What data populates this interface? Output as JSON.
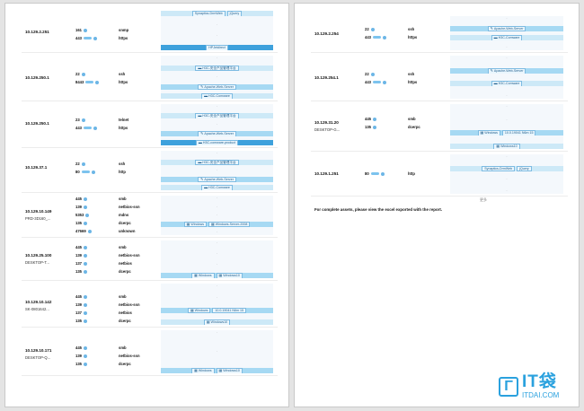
{
  "page1": {
    "rows": [
      {
        "ip": "10.129.2.251",
        "host": "",
        "ports": [
          {
            "p": "161",
            "svc": "snmp"
          },
          {
            "p": "443",
            "svc": "https"
          }
        ],
        "panel": [
          {
            "style": "lt",
            "tags": [
              {
                "icon": "",
                "text": "Synaptics-DrmWeb"
              },
              {
                "icon": "",
                "text": "jQuery"
              }
            ]
          },
          {
            "style": "ds",
            "text": "-"
          },
          {
            "style": "ds",
            "text": "-"
          },
          {
            "style": "dk",
            "tags": [
              {
                "icon": "",
                "text": "HPJetdirect"
              }
            ]
          }
        ]
      },
      {
        "ip": "10.129.250.1",
        "host": "",
        "ports": [
          {
            "p": "22",
            "svc": "ssh"
          },
          {
            "p": "8443",
            "svc": "https"
          }
        ],
        "panel": [
          {
            "style": "ds",
            "text": "-"
          },
          {
            "style": "lt",
            "tags": [
              {
                "icon": "▬",
                "text": "H3C-安全产品管理平台"
              }
            ]
          },
          {
            "style": "ds",
            "text": "-"
          },
          {
            "style": "md",
            "tags": [
              {
                "icon": "✎",
                "text": "Apache-Web-Server"
              }
            ]
          },
          {
            "style": "lt",
            "tags": [
              {
                "icon": "▬",
                "text": "H3C-Comware"
              }
            ]
          }
        ]
      },
      {
        "ip": "10.129.250.1",
        "host": "",
        "ports": [
          {
            "p": "23",
            "svc": "telnet"
          },
          {
            "p": "443",
            "svc": "https"
          }
        ],
        "panel": [
          {
            "style": "ds",
            "text": "-"
          },
          {
            "style": "lt",
            "tags": [
              {
                "icon": "▬",
                "text": "H3C-安全产品管理平台"
              }
            ]
          },
          {
            "style": "ds",
            "text": "-"
          },
          {
            "style": "md",
            "tags": [
              {
                "icon": "✎",
                "text": "Apache-Web-Server"
              }
            ]
          },
          {
            "style": "dk",
            "tags": [
              {
                "icon": "▬",
                "text": "H3C-comware-product"
              }
            ]
          }
        ]
      },
      {
        "ip": "10.129.37.1",
        "host": "",
        "ports": [
          {
            "p": "22",
            "svc": "ssh"
          },
          {
            "p": "80",
            "svc": "http"
          }
        ],
        "panel": [
          {
            "style": "ds",
            "text": "-"
          },
          {
            "style": "lt",
            "tags": [
              {
                "icon": "▬",
                "text": "H3C-安全产品管理平台"
              }
            ]
          },
          {
            "style": "ds",
            "text": "-"
          },
          {
            "style": "md",
            "tags": [
              {
                "icon": "✎",
                "text": "Apache-Web-Server"
              }
            ]
          },
          {
            "style": "lt",
            "tags": [
              {
                "icon": "▬",
                "text": "H3C-Comware"
              }
            ]
          }
        ]
      },
      {
        "ip": "10.129.10.149",
        "host": "PRD-3D160_...",
        "ports": [
          {
            "p": "445",
            "svc": "smb"
          },
          {
            "p": "139",
            "svc": "netbios-ssn"
          },
          {
            "p": "5353",
            "svc": "mdns"
          },
          {
            "p": "135",
            "svc": "dcerpc"
          },
          {
            "p": "47669",
            "svc": "unknown"
          }
        ],
        "panel": [
          {
            "style": "ds",
            "text": "-"
          },
          {
            "style": "ds",
            "text": "-"
          },
          {
            "style": "ds",
            "text": "-"
          },
          {
            "style": "md",
            "tags": [
              {
                "icon": "▦",
                "text": "Windows"
              },
              {
                "icon": "▦",
                "text": "Windows-Server-2008"
              }
            ]
          },
          {
            "style": "ds",
            "text": "-"
          }
        ]
      },
      {
        "ip": "10.129.25.100",
        "host": "DESKTOP-T...",
        "ports": [
          {
            "p": "445",
            "svc": "smb"
          },
          {
            "p": "139",
            "svc": "netbios-ssn"
          },
          {
            "p": "137",
            "svc": "netbios"
          },
          {
            "p": "135",
            "svc": "dcerpc"
          }
        ],
        "panel": [
          {
            "style": "ds",
            "text": "-"
          },
          {
            "style": "ds",
            "text": "-"
          },
          {
            "style": "ds",
            "text": "-"
          },
          {
            "style": "md",
            "tags": [
              {
                "icon": "▦",
                "text": "Windows"
              },
              {
                "icon": "▦",
                "text": "Windows10"
              }
            ]
          }
        ]
      },
      {
        "ip": "10.129.10.142",
        "host": "SK-0801642...",
        "ports": [
          {
            "p": "445",
            "svc": "smb"
          },
          {
            "p": "139",
            "svc": "netbios-ssn"
          },
          {
            "p": "137",
            "svc": "netbios"
          },
          {
            "p": "135",
            "svc": "dcerpc"
          }
        ],
        "panel": [
          {
            "style": "ds",
            "text": "-"
          },
          {
            "style": "ds",
            "text": "-"
          },
          {
            "style": "md",
            "tags": [
              {
                "icon": "▦",
                "text": "Windows"
              },
              {
                "icon": "",
                "text": "10.0.19041 N6m 15"
              }
            ]
          },
          {
            "style": "lt",
            "tags": [
              {
                "icon": "▦",
                "text": "Windows10"
              }
            ]
          }
        ]
      },
      {
        "ip": "10.129.10.171",
        "host": "DESKTOP-Q...",
        "ports": [
          {
            "p": "445",
            "svc": "smb"
          },
          {
            "p": "139",
            "svc": "netbios-ssn"
          },
          {
            "p": "135",
            "svc": "dcerpc"
          }
        ],
        "panel": [
          {
            "style": "ds",
            "text": "-"
          },
          {
            "style": "ds",
            "text": "-"
          },
          {
            "style": "md",
            "tags": [
              {
                "icon": "▦",
                "text": "Windows"
              },
              {
                "icon": "▦",
                "text": "Windows10"
              }
            ]
          }
        ]
      }
    ]
  },
  "page2": {
    "rows": [
      {
        "ip": "10.129.2.254",
        "host": "",
        "ports": [
          {
            "p": "22",
            "svc": "ssh"
          },
          {
            "p": "443",
            "svc": "https"
          }
        ],
        "panel": [
          {
            "style": "ds",
            "text": "-"
          },
          {
            "style": "md",
            "tags": [
              {
                "icon": "✎",
                "text": "Apache-Web-Server"
              }
            ]
          },
          {
            "style": "lt",
            "tags": [
              {
                "icon": "▬",
                "text": "H3C-Comware"
              }
            ]
          },
          {
            "style": "ds",
            "text": "-"
          }
        ]
      },
      {
        "ip": "10.129.254.1",
        "host": "",
        "ports": [
          {
            "p": "22",
            "svc": "ssh"
          },
          {
            "p": "443",
            "svc": "https"
          }
        ],
        "panel": [
          {
            "style": "ds",
            "text": "-"
          },
          {
            "style": "md",
            "tags": [
              {
                "icon": "✎",
                "text": "Apache-Web-Server"
              }
            ]
          },
          {
            "style": "lt",
            "tags": [
              {
                "icon": "▬",
                "text": "H3C-Comware"
              }
            ]
          },
          {
            "style": "ds",
            "text": "-"
          }
        ]
      },
      {
        "ip": "10.129.31.20",
        "host": "DESKTOP-G...",
        "ports": [
          {
            "p": "445",
            "svc": "smb"
          },
          {
            "p": "135",
            "svc": "dcerpc"
          }
        ],
        "panel": [
          {
            "style": "ds",
            "text": "-"
          },
          {
            "style": "ds",
            "text": "-"
          },
          {
            "style": "md",
            "tags": [
              {
                "icon": "▦",
                "text": "Windows"
              },
              {
                "icon": "",
                "text": "10.0.19041 N6m 15"
              }
            ]
          },
          {
            "style": "lt",
            "tags": [
              {
                "icon": "▦",
                "text": "Windows10"
              }
            ]
          }
        ]
      },
      {
        "ip": "10.129.1.251",
        "host": "",
        "ports": [
          {
            "p": "80",
            "svc": "http"
          }
        ],
        "panel": [
          {
            "style": "ds",
            "text": "-"
          },
          {
            "style": "lt",
            "tags": [
              {
                "icon": "",
                "text": "Synaptics-DrmWeb"
              },
              {
                "icon": "",
                "text": "jQuery"
              }
            ]
          },
          {
            "style": "ds",
            "text": "-"
          },
          {
            "style": "ds",
            "text": "-"
          }
        ]
      }
    ],
    "more": "更多",
    "footnote": "For complete assets, please view the excel exported with the report."
  },
  "watermark": {
    "glyph": "Γ",
    "brand": "IT袋",
    "url": "ITDAI.COM"
  },
  "colors": {
    "accent": "#3ea1dc",
    "tag_bg": "#eaf6fd",
    "band_light": "#cde9f7",
    "band_mid": "#a6d9f3"
  }
}
